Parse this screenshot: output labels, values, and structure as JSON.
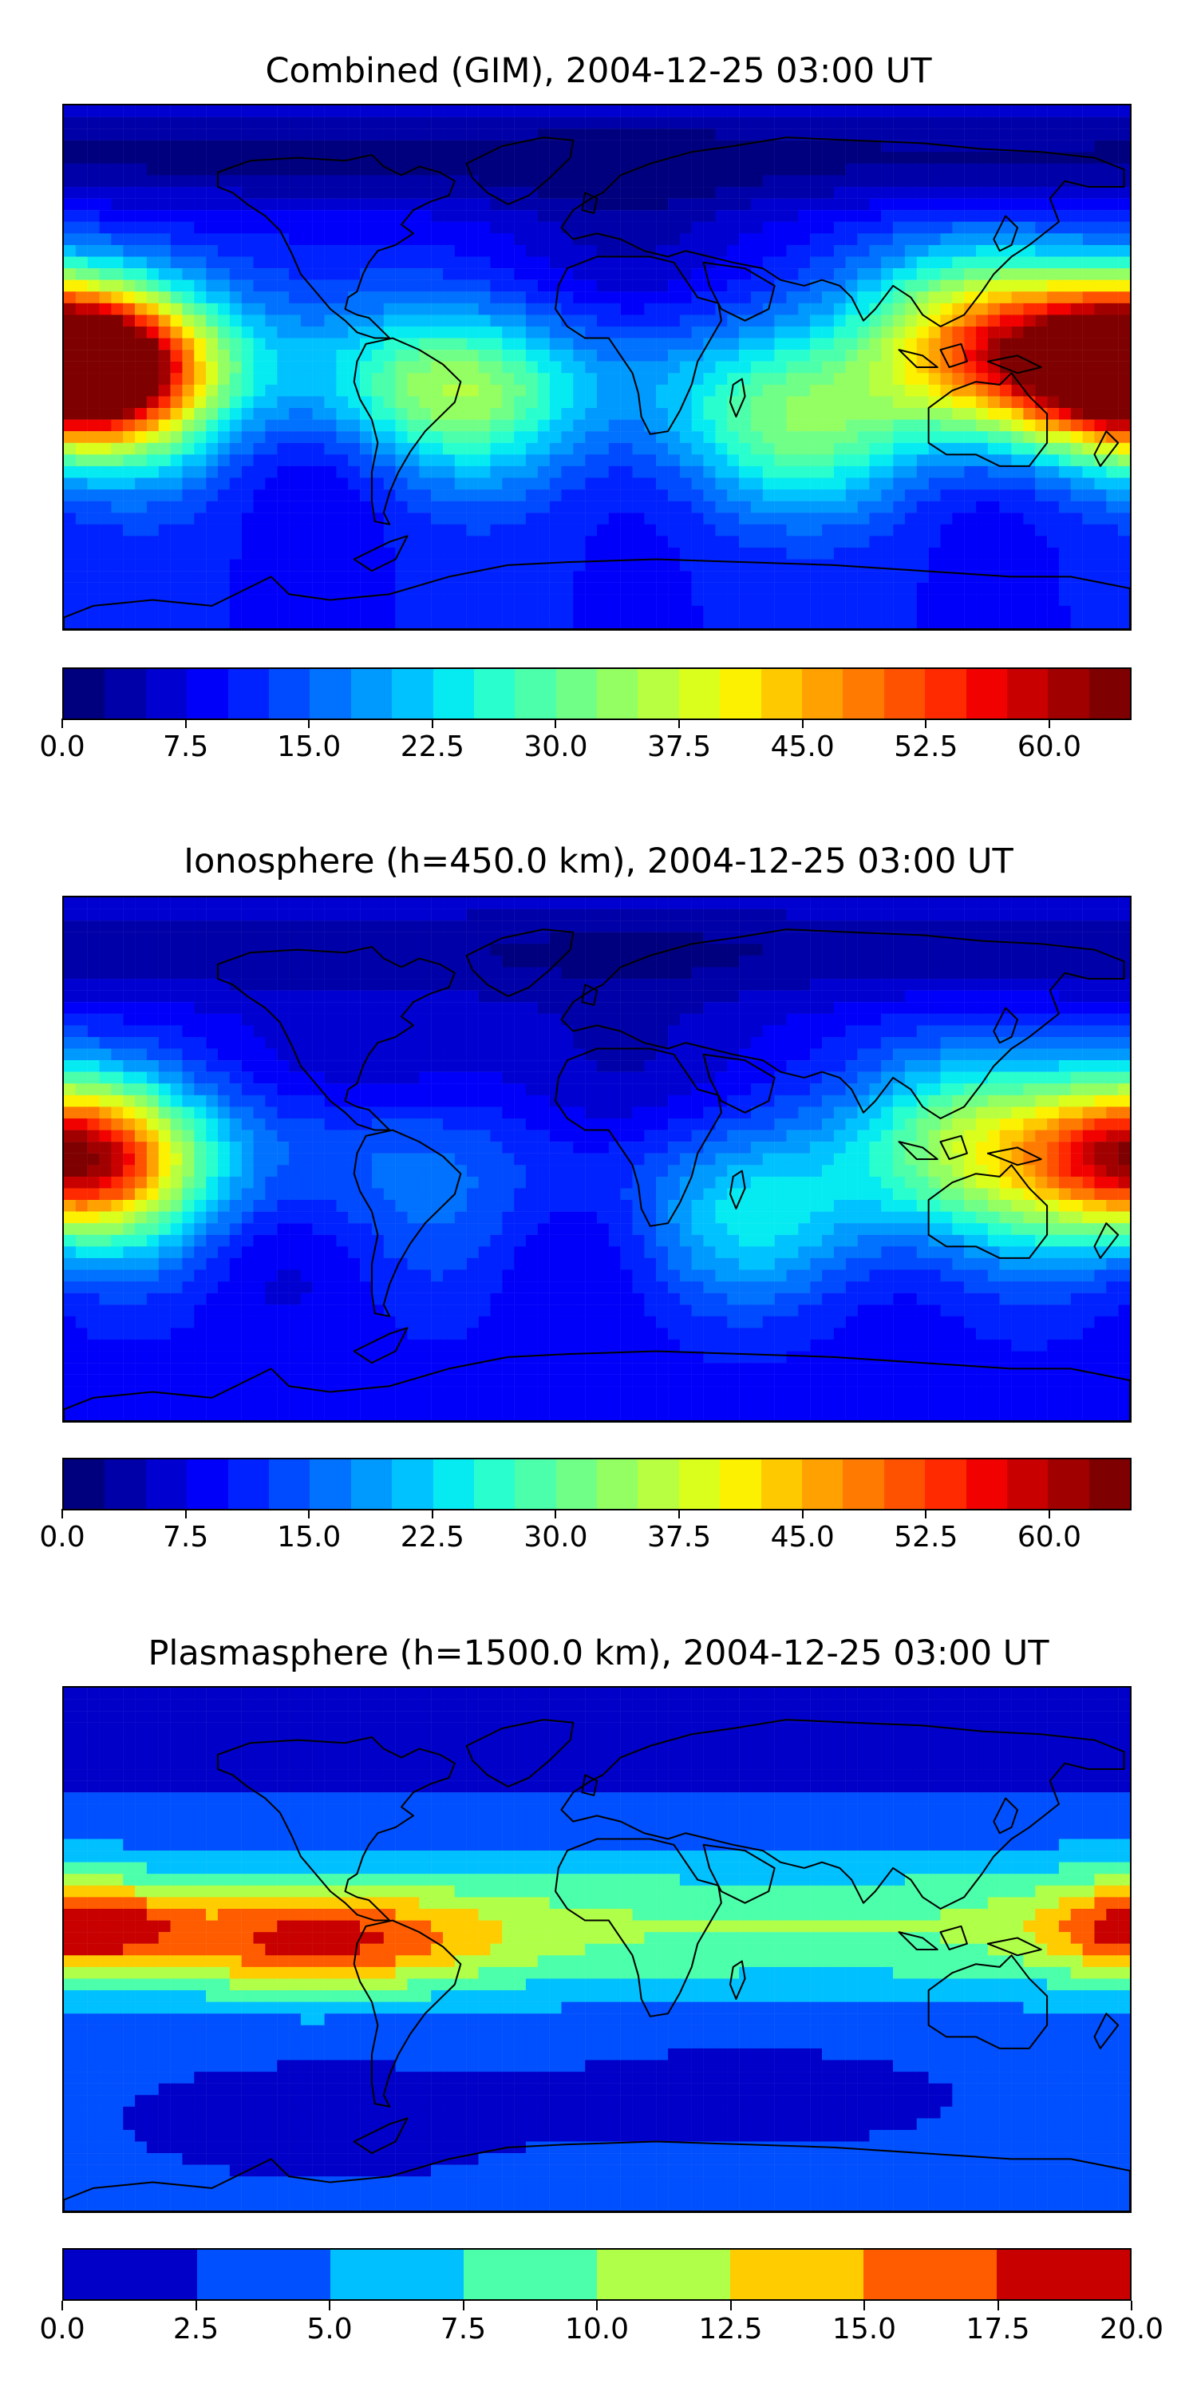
{
  "panels": [
    {
      "id": "combined",
      "title": "Combined (GIM), 2004-12-25 03:00 UT",
      "field": "combined",
      "colorbar": {
        "min": 0.0,
        "max": 65.0,
        "step": 2.5,
        "tick_labels": [
          "0.0",
          "7.5",
          "15.0",
          "22.5",
          "30.0",
          "37.5",
          "45.0",
          "52.5",
          "60.0"
        ],
        "colors": [
          "#00007f",
          "#0000a8",
          "#0000d1",
          "#0000fa",
          "#0022ff",
          "#004aff",
          "#0072ff",
          "#009aff",
          "#00c2ff",
          "#06ebf1",
          "#29ffce",
          "#4cffaa",
          "#70ff87",
          "#93ff63",
          "#b7ff40",
          "#daff1d",
          "#fbf100",
          "#ffc900",
          "#ffa100",
          "#ff7a00",
          "#ff5200",
          "#ff2a00",
          "#f10200",
          "#c90000",
          "#a10000",
          "#7f0000"
        ]
      }
    },
    {
      "id": "ionosphere",
      "title": "Ionosphere  (h=450.0 km), 2004-12-25 03:00 UT",
      "field": "ionosphere",
      "colorbar": {
        "min": 0.0,
        "max": 65.0,
        "step": 2.5,
        "tick_labels": [
          "0.0",
          "7.5",
          "15.0",
          "22.5",
          "30.0",
          "37.5",
          "45.0",
          "52.5",
          "60.0"
        ],
        "colors": [
          "#00007f",
          "#0000a8",
          "#0000d1",
          "#0000fa",
          "#0022ff",
          "#004aff",
          "#0072ff",
          "#009aff",
          "#00c2ff",
          "#06ebf1",
          "#29ffce",
          "#4cffaa",
          "#70ff87",
          "#93ff63",
          "#b7ff40",
          "#daff1d",
          "#fbf100",
          "#ffc900",
          "#ffa100",
          "#ff7a00",
          "#ff5200",
          "#ff2a00",
          "#f10200",
          "#c90000",
          "#a10000",
          "#7f0000"
        ]
      }
    },
    {
      "id": "plasmasphere",
      "title": "Plasmasphere (h=1500.0 km), 2004-12-25 03:00 UT",
      "field": "plasmasphere",
      "colorbar": {
        "min": 0.0,
        "max": 20.0,
        "step": 2.5,
        "tick_labels": [
          "0.0",
          "2.5",
          "5.0",
          "7.5",
          "10.0",
          "12.5",
          "15.0",
          "17.5",
          "20.0"
        ],
        "colors": [
          "#0000c8",
          "#0050ff",
          "#00c0ff",
          "#4cffaa",
          "#b0ff48",
          "#ffcc00",
          "#ff5c00",
          "#c80000"
        ]
      }
    }
  ]
}
